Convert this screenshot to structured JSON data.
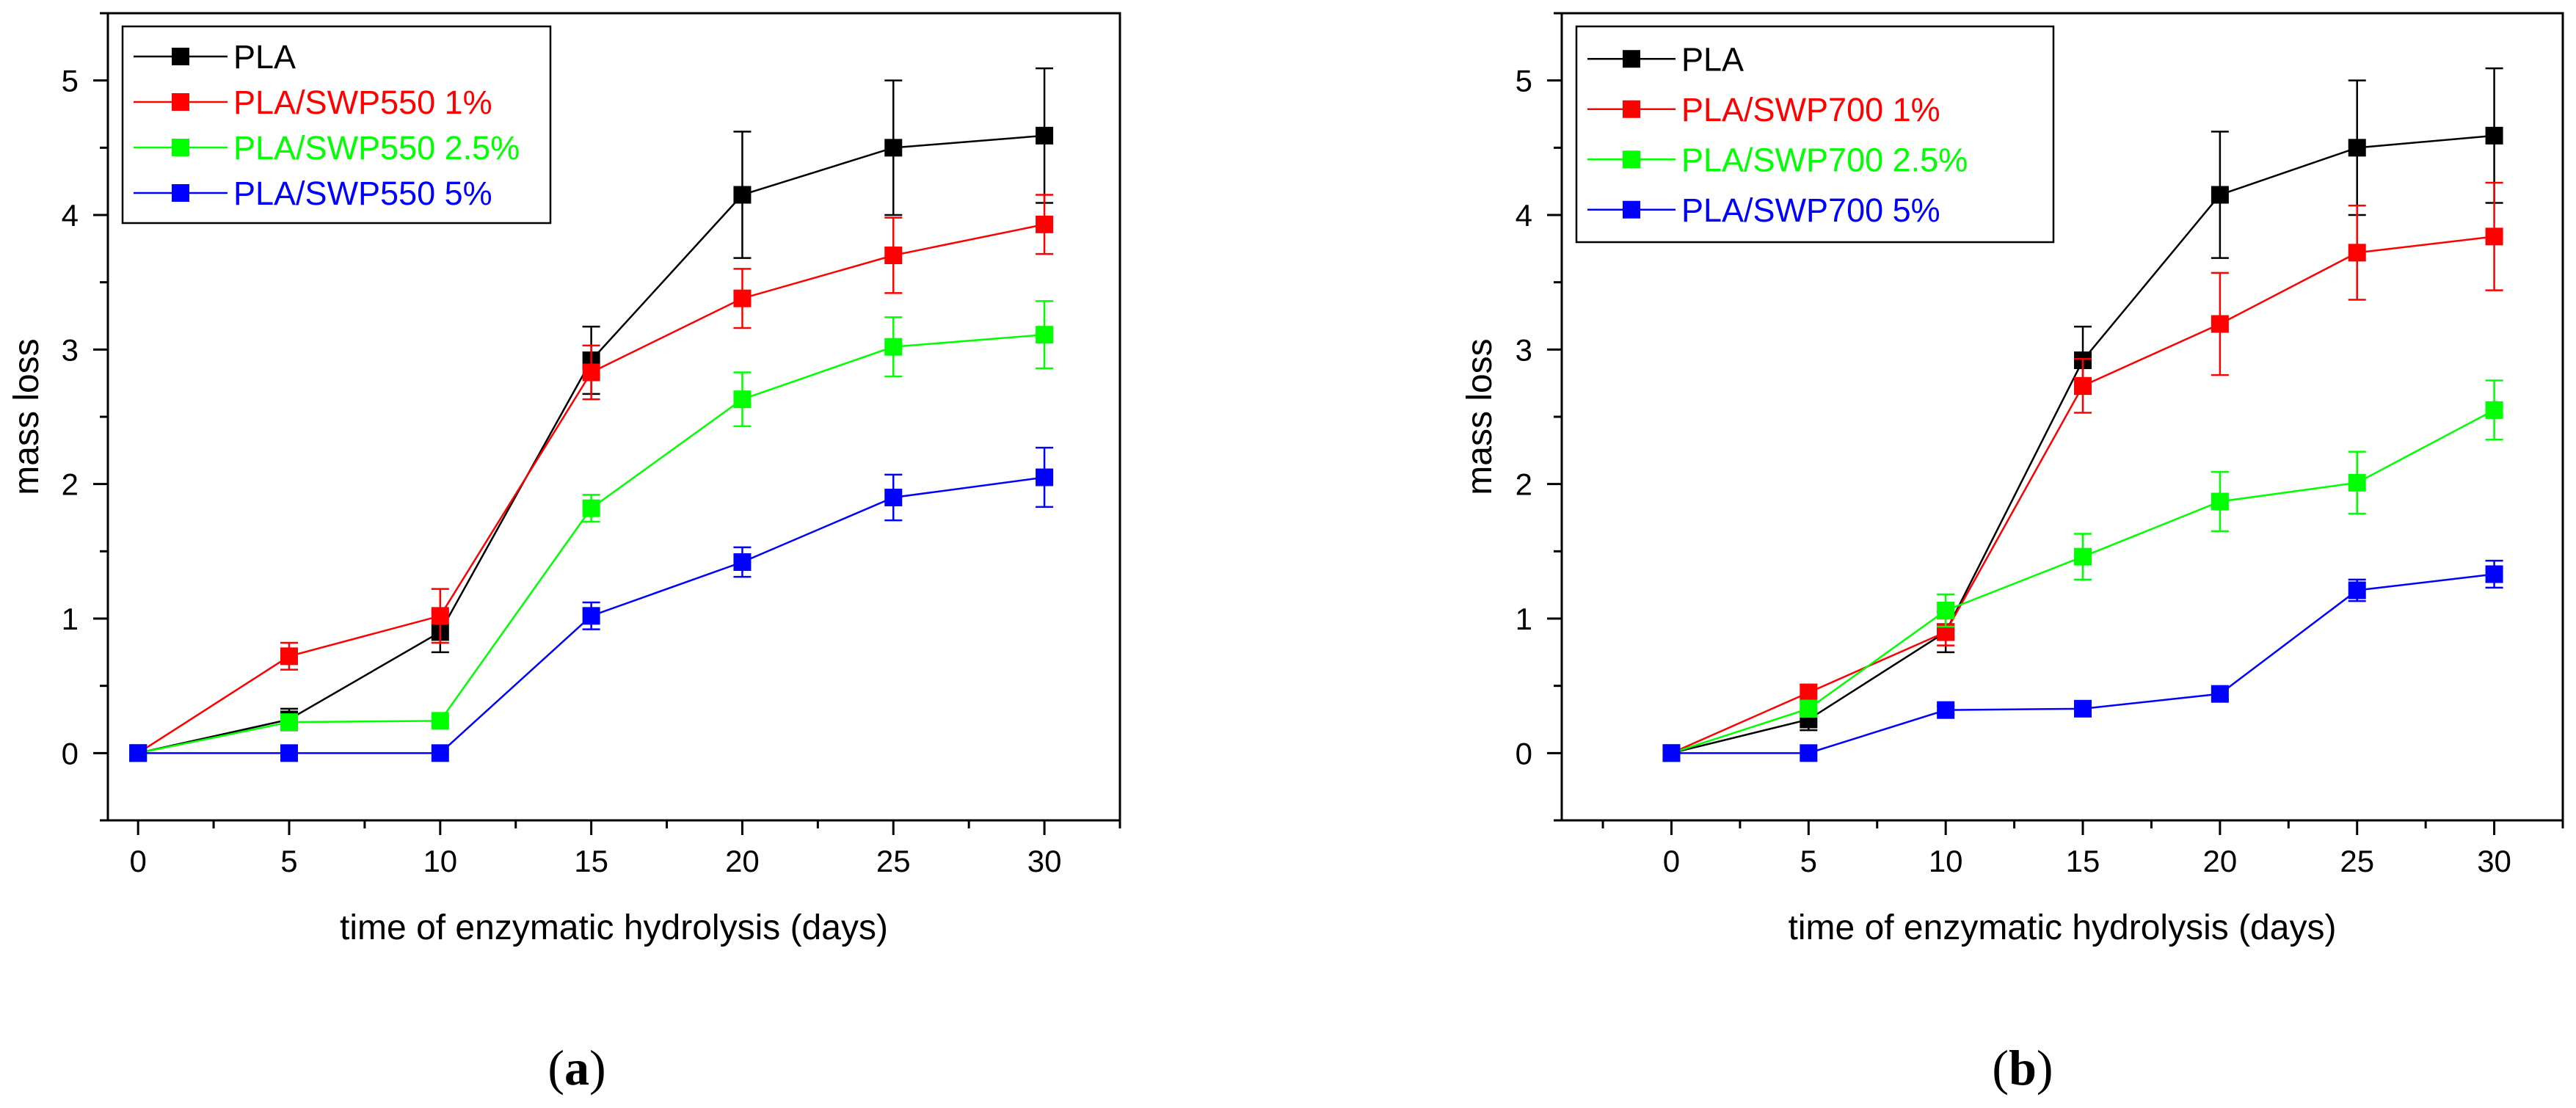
{
  "chart_data": [
    {
      "type": "line",
      "panel_label": "a",
      "xlabel": "time of enzymatic hydrolysis (days)",
      "ylabel": "mass loss",
      "xlim": [
        -1,
        32.5
      ],
      "ylim": [
        -0.5,
        5.5
      ],
      "xticks": [
        0,
        5,
        10,
        15,
        20,
        25,
        30
      ],
      "yticks": [
        0,
        1,
        2,
        3,
        4,
        5
      ],
      "grid": false,
      "legend_position": "top-left",
      "x": [
        0,
        5,
        10,
        15,
        20,
        25,
        30
      ],
      "series": [
        {
          "name": "PLA",
          "color": "#000000",
          "values": [
            0,
            0.25,
            0.9,
            2.92,
            4.15,
            4.5,
            4.59
          ],
          "errors": [
            0,
            0.08,
            0.15,
            0.25,
            0.47,
            0.5,
            0.5
          ]
        },
        {
          "name": "PLA/SWP550 1%",
          "color": "#ff0000",
          "values": [
            0,
            0.72,
            1.02,
            2.83,
            3.38,
            3.7,
            3.93
          ],
          "errors": [
            0,
            0.1,
            0.2,
            0.2,
            0.22,
            0.28,
            0.22
          ]
        },
        {
          "name": "PLA/SWP550 2.5%",
          "color": "#00ff00",
          "values": [
            0,
            0.23,
            0.24,
            1.82,
            2.63,
            3.02,
            3.11
          ],
          "errors": [
            0,
            0.04,
            0.03,
            0.1,
            0.2,
            0.22,
            0.25
          ]
        },
        {
          "name": "PLA/SWP550 5%",
          "color": "#0000ff",
          "values": [
            0,
            0,
            0,
            1.02,
            1.42,
            1.9,
            2.05
          ],
          "errors": [
            0,
            0,
            0,
            0.1,
            0.11,
            0.17,
            0.22
          ]
        }
      ]
    },
    {
      "type": "line",
      "panel_label": "b",
      "xlabel": "time of enzymatic hydrolysis (days)",
      "ylabel": "mass loss",
      "xlim": [
        -4,
        32.5
      ],
      "ylim": [
        -0.5,
        5.5
      ],
      "xticks": [
        0,
        5,
        10,
        15,
        20,
        25,
        30
      ],
      "yticks": [
        0,
        1,
        2,
        3,
        4,
        5
      ],
      "grid": false,
      "legend_position": "top-left",
      "x": [
        0,
        5,
        10,
        15,
        20,
        25,
        30
      ],
      "series": [
        {
          "name": "PLA",
          "color": "#000000",
          "values": [
            0,
            0.25,
            0.9,
            2.92,
            4.15,
            4.5,
            4.59
          ],
          "errors": [
            0,
            0.08,
            0.15,
            0.25,
            0.47,
            0.5,
            0.5
          ]
        },
        {
          "name": "PLA/SWP700 1%",
          "color": "#ff0000",
          "values": [
            0,
            0.45,
            0.9,
            2.73,
            3.19,
            3.72,
            3.84
          ],
          "errors": [
            0,
            0.06,
            0.1,
            0.2,
            0.38,
            0.35,
            0.4
          ]
        },
        {
          "name": "PLA/SWP700 2.5%",
          "color": "#00ff00",
          "values": [
            0,
            0.33,
            1.06,
            1.46,
            1.87,
            2.01,
            2.55
          ],
          "errors": [
            0,
            0.06,
            0.12,
            0.17,
            0.22,
            0.23,
            0.22
          ]
        },
        {
          "name": "PLA/SWP700 5%",
          "color": "#0000ff",
          "values": [
            0,
            0,
            0.32,
            0.33,
            0.44,
            1.21,
            1.33
          ],
          "errors": [
            0,
            0,
            0.03,
            0.03,
            0.04,
            0.08,
            0.1
          ]
        }
      ]
    }
  ]
}
